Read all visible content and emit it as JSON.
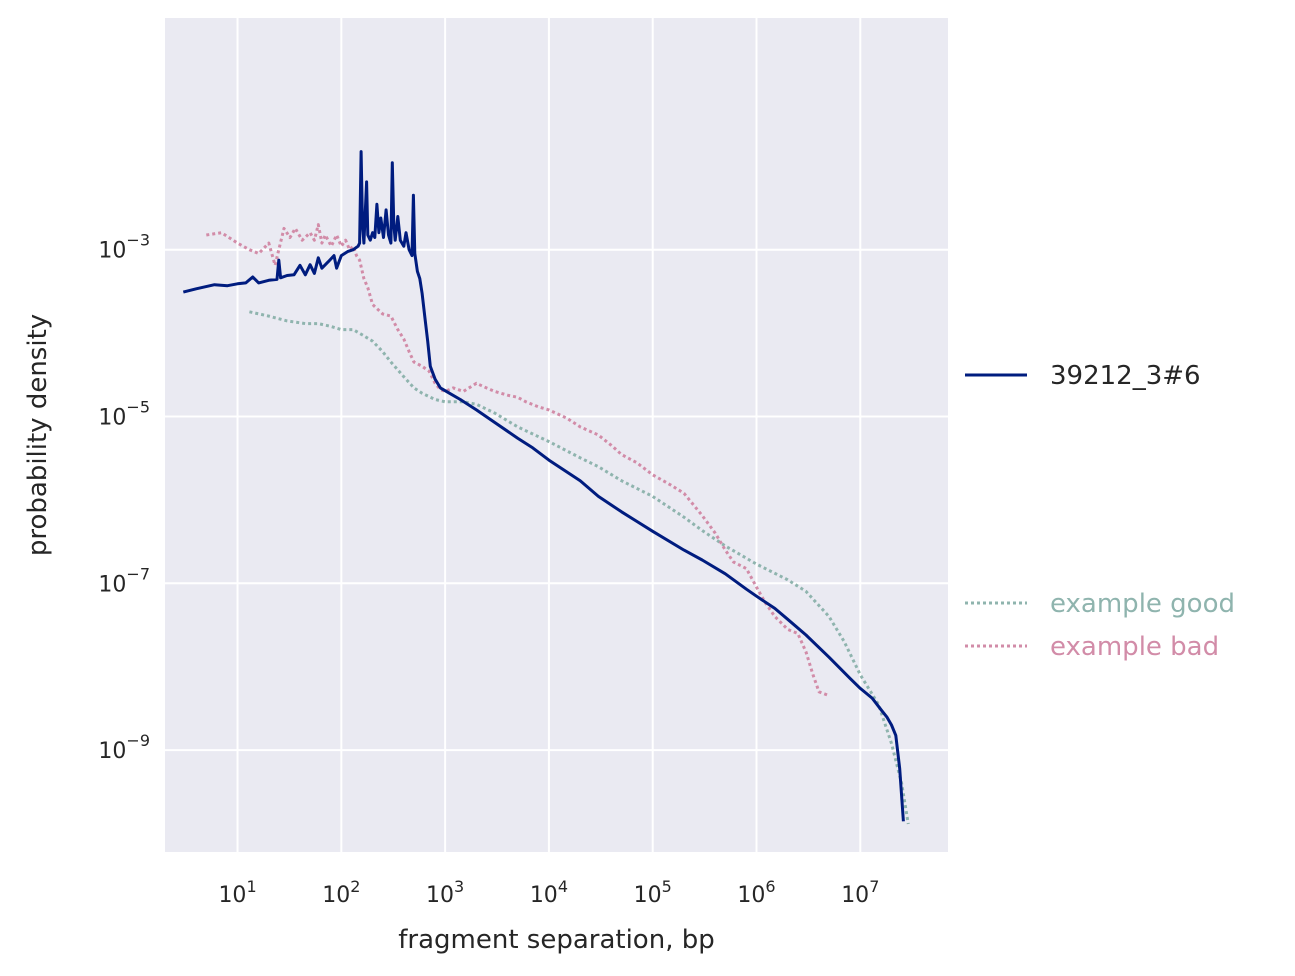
{
  "chart_data": {
    "type": "line",
    "xlabel": "fragment separation, bp",
    "ylabel": "probability density",
    "x_scale": "log",
    "y_scale": "log",
    "xlim": [
      2.0,
      70000000
    ],
    "ylim": [
      6e-11,
      0.6
    ],
    "x_ticks": [
      10,
      100,
      1000,
      10000,
      100000,
      1000000,
      10000000
    ],
    "x_tick_labels": [
      {
        "base": "10",
        "exp": "1"
      },
      {
        "base": "10",
        "exp": "2"
      },
      {
        "base": "10",
        "exp": "3"
      },
      {
        "base": "10",
        "exp": "4"
      },
      {
        "base": "10",
        "exp": "5"
      },
      {
        "base": "10",
        "exp": "6"
      },
      {
        "base": "10",
        "exp": "7"
      }
    ],
    "y_ticks": [
      1e-09,
      1e-07,
      1e-05,
      0.001
    ],
    "y_tick_labels": [
      {
        "base": "10",
        "exp": "−9"
      },
      {
        "base": "10",
        "exp": "−7"
      },
      {
        "base": "10",
        "exp": "−5"
      },
      {
        "base": "10",
        "exp": "−3"
      }
    ],
    "grid": true,
    "background": "#eaeaf2",
    "legend_placement": "right",
    "series": [
      {
        "name": "39212_3#6",
        "style": "solid",
        "color": "#001c7f",
        "legend_text_color": "#262626",
        "points": [
          [
            3,
            0.00031
          ],
          [
            4,
            0.00034
          ],
          [
            6,
            0.00038
          ],
          [
            8,
            0.00037
          ],
          [
            10,
            0.00039
          ],
          [
            12,
            0.0004
          ],
          [
            14,
            0.00047
          ],
          [
            16,
            0.0004
          ],
          [
            20,
            0.00043
          ],
          [
            24,
            0.00044
          ],
          [
            25,
            0.00075
          ],
          [
            26,
            0.00046
          ],
          [
            30,
            0.00049
          ],
          [
            35,
            0.0005
          ],
          [
            40,
            0.00065
          ],
          [
            45,
            0.0005
          ],
          [
            50,
            0.00066
          ],
          [
            55,
            0.00052
          ],
          [
            60,
            0.0008
          ],
          [
            65,
            0.0006
          ],
          [
            75,
            0.00072
          ],
          [
            85,
            0.00085
          ],
          [
            90,
            0.0006
          ],
          [
            100,
            0.00085
          ],
          [
            115,
            0.00095
          ],
          [
            130,
            0.001
          ],
          [
            145,
            0.0011
          ],
          [
            150,
            0.0012
          ],
          [
            155,
            0.015
          ],
          [
            160,
            0.002
          ],
          [
            165,
            0.0012
          ],
          [
            175,
            0.0065
          ],
          [
            180,
            0.0015
          ],
          [
            190,
            0.0013
          ],
          [
            200,
            0.0016
          ],
          [
            210,
            0.0014
          ],
          [
            220,
            0.0035
          ],
          [
            230,
            0.0016
          ],
          [
            240,
            0.0024
          ],
          [
            255,
            0.0014
          ],
          [
            270,
            0.003
          ],
          [
            285,
            0.0015
          ],
          [
            300,
            0.0012
          ],
          [
            310,
            0.011
          ],
          [
            320,
            0.002
          ],
          [
            330,
            0.0013
          ],
          [
            350,
            0.0025
          ],
          [
            370,
            0.0013
          ],
          [
            400,
            0.0011
          ],
          [
            420,
            0.0016
          ],
          [
            450,
            0.001
          ],
          [
            480,
            0.00085
          ],
          [
            495,
            0.0045
          ],
          [
            510,
            0.0009
          ],
          [
            540,
            0.00055
          ],
          [
            570,
            0.00045
          ],
          [
            600,
            0.0003
          ],
          [
            640,
            0.00015
          ],
          [
            680,
            8e-05
          ],
          [
            720,
            4e-05
          ],
          [
            800,
            2.8e-05
          ],
          [
            900,
            2.2e-05
          ],
          [
            1100,
            1.9e-05
          ],
          [
            1400,
            1.6e-05
          ],
          [
            2000,
            1.2e-05
          ],
          [
            3000,
            8.5e-06
          ],
          [
            5000,
            5.5e-06
          ],
          [
            7000,
            4.2e-06
          ],
          [
            10000,
            3e-06
          ],
          [
            20000,
            1.7e-06
          ],
          [
            30000,
            1.1e-06
          ],
          [
            50000,
            7.2e-07
          ],
          [
            100000,
            4.2e-07
          ],
          [
            200000,
            2.5e-07
          ],
          [
            300000,
            1.9e-07
          ],
          [
            500000,
            1.3e-07
          ],
          [
            800000,
            8.5e-08
          ],
          [
            1000000,
            7e-08
          ],
          [
            1500000,
            5e-08
          ],
          [
            2000000,
            3.7e-08
          ],
          [
            3000000,
            2.4e-08
          ],
          [
            5000000,
            1.3e-08
          ],
          [
            8000000,
            7.2e-09
          ],
          [
            10000000,
            5.5e-09
          ],
          [
            13000000,
            4.2e-09
          ],
          [
            16000000,
            3e-09
          ],
          [
            18000000,
            2.5e-09
          ],
          [
            20000000,
            2e-09
          ],
          [
            22000000,
            1.5e-09
          ],
          [
            24000000,
            6e-10
          ],
          [
            26000000,
            1.4e-10
          ]
        ]
      },
      {
        "name": "example good",
        "style": "dotted",
        "color": "#8fb4ae",
        "legend_text_color": "#8fb4ae",
        "points": [
          [
            13,
            0.00018
          ],
          [
            20,
            0.00016
          ],
          [
            30,
            0.00014
          ],
          [
            45,
            0.00013
          ],
          [
            60,
            0.00013
          ],
          [
            80,
            0.00012
          ],
          [
            100,
            0.00011
          ],
          [
            130,
            0.00011
          ],
          [
            160,
            9.5e-05
          ],
          [
            200,
            8e-05
          ],
          [
            250,
            6e-05
          ],
          [
            300,
            4.5e-05
          ],
          [
            400,
            3e-05
          ],
          [
            500,
            2.2e-05
          ],
          [
            600,
            1.9e-05
          ],
          [
            800,
            1.6e-05
          ],
          [
            1000,
            1.5e-05
          ],
          [
            1500,
            1.5e-05
          ],
          [
            2000,
            1.4e-05
          ],
          [
            3000,
            1.1e-05
          ],
          [
            5000,
            7.5e-06
          ],
          [
            10000,
            5e-06
          ],
          [
            20000,
            3.2e-06
          ],
          [
            30000,
            2.5e-06
          ],
          [
            50000,
            1.7e-06
          ],
          [
            100000,
            1.1e-06
          ],
          [
            200000,
            6.2e-07
          ],
          [
            300000,
            4.3e-07
          ],
          [
            500000,
            2.8e-07
          ],
          [
            1000000,
            1.7e-07
          ],
          [
            2000000,
            1.1e-07
          ],
          [
            3000000,
            8e-08
          ],
          [
            5000000,
            4e-08
          ],
          [
            7000000,
            2e-08
          ],
          [
            10000000,
            8e-09
          ],
          [
            15000000,
            3.5e-09
          ],
          [
            20000000,
            1.2e-09
          ],
          [
            25000000,
            4e-10
          ],
          [
            29000000,
            1.3e-10
          ]
        ]
      },
      {
        "name": "example bad",
        "style": "dotted",
        "color": "#d28ca8",
        "legend_text_color": "#d28ca8",
        "points": [
          [
            5,
            0.0015
          ],
          [
            7,
            0.0016
          ],
          [
            10,
            0.0012
          ],
          [
            13,
            0.001
          ],
          [
            16,
            0.0009
          ],
          [
            20,
            0.0012
          ],
          [
            23,
            0.00065
          ],
          [
            25,
            0.001
          ],
          [
            28,
            0.0018
          ],
          [
            32,
            0.0014
          ],
          [
            36,
            0.0018
          ],
          [
            42,
            0.0013
          ],
          [
            50,
            0.0016
          ],
          [
            55,
            0.0013
          ],
          [
            60,
            0.002
          ],
          [
            65,
            0.0012
          ],
          [
            70,
            0.0015
          ],
          [
            80,
            0.0011
          ],
          [
            90,
            0.0015
          ],
          [
            100,
            0.0011
          ],
          [
            110,
            0.0013
          ],
          [
            120,
            0.001
          ],
          [
            130,
            0.0011
          ],
          [
            140,
            0.00085
          ],
          [
            150,
            0.00075
          ],
          [
            165,
            0.00045
          ],
          [
            180,
            0.00035
          ],
          [
            200,
            0.00022
          ],
          [
            250,
            0.00017
          ],
          [
            300,
            0.00016
          ],
          [
            350,
            0.00011
          ],
          [
            400,
            8.5e-05
          ],
          [
            450,
            6e-05
          ],
          [
            500,
            4.5e-05
          ],
          [
            600,
            4e-05
          ],
          [
            700,
            3.5e-05
          ],
          [
            800,
            2.5e-05
          ],
          [
            900,
            2.1e-05
          ],
          [
            1000,
            2e-05
          ],
          [
            1200,
            2.2e-05
          ],
          [
            1500,
            2e-05
          ],
          [
            2000,
            2.5e-05
          ],
          [
            2500,
            2.2e-05
          ],
          [
            3000,
            2e-05
          ],
          [
            4000,
            1.8e-05
          ],
          [
            5000,
            1.7e-05
          ],
          [
            6000,
            1.5e-05
          ],
          [
            8000,
            1.3e-05
          ],
          [
            10000,
            1.2e-05
          ],
          [
            15000,
            9.5e-06
          ],
          [
            20000,
            7.5e-06
          ],
          [
            30000,
            6e-06
          ],
          [
            40000,
            4.5e-06
          ],
          [
            50000,
            3.5e-06
          ],
          [
            70000,
            2.8e-06
          ],
          [
            100000,
            2e-06
          ],
          [
            150000,
            1.5e-06
          ],
          [
            200000,
            1.2e-06
          ],
          [
            300000,
            6.5e-07
          ],
          [
            400000,
            4e-07
          ],
          [
            500000,
            2.5e-07
          ],
          [
            600000,
            1.8e-07
          ],
          [
            800000,
            1.5e-07
          ],
          [
            1000000,
            9e-08
          ],
          [
            1200000,
            6e-08
          ],
          [
            1500000,
            4e-08
          ],
          [
            2000000,
            2.8e-08
          ],
          [
            2500000,
            2.5e-08
          ],
          [
            3000000,
            1.5e-08
          ],
          [
            3500000,
            8e-09
          ],
          [
            4000000,
            5e-09
          ],
          [
            5000000,
            4.5e-09
          ]
        ]
      }
    ]
  }
}
